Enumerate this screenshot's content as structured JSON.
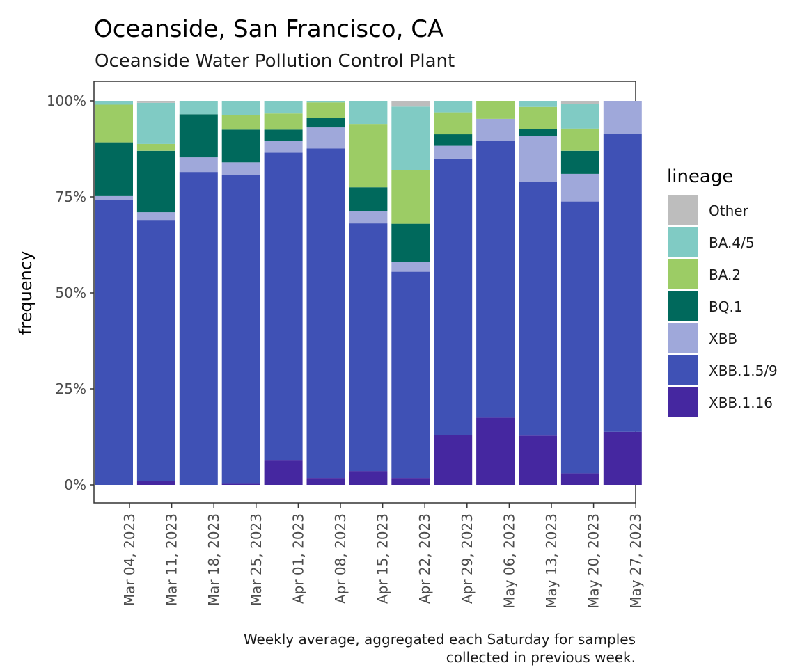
{
  "chart_data": {
    "type": "bar",
    "stacked": true,
    "title": "Oceanside, San Francisco, CA",
    "subtitle": "Oceanside Water Pollution Control Plant",
    "xlabel": "",
    "ylabel": "frequency",
    "ylim": [
      0,
      1
    ],
    "yticks": [
      "0%",
      "25%",
      "50%",
      "75%",
      "100%"
    ],
    "xticks": [
      "Mar 04, 2023",
      "Mar 11, 2023",
      "Mar 18, 2023",
      "Mar 25, 2023",
      "Apr 01, 2023",
      "Apr 08, 2023",
      "Apr 15, 2023",
      "Apr 22, 2023",
      "Apr 29, 2023",
      "May 06, 2023",
      "May 13, 2023",
      "May 20, 2023",
      "May 27, 2023"
    ],
    "caption_lines": [
      "Weekly average, aggregated each Saturday for samples",
      "collected in previous week."
    ],
    "legend_title": "lineage",
    "legend_position": "right",
    "grid": false,
    "bars": 13,
    "series": [
      {
        "name": "XBB.1.16",
        "color": "#4527a0",
        "values": [
          0.0,
          0.01,
          0.0,
          0.003,
          0.065,
          0.018,
          0.036,
          0.018,
          0.13,
          0.175,
          0.128,
          0.03,
          0.138
        ]
      },
      {
        "name": "XBB.1.5/9",
        "color": "#3f51b5",
        "values": [
          0.742,
          0.68,
          0.815,
          0.805,
          0.8,
          0.858,
          0.645,
          0.537,
          0.72,
          0.72,
          0.66,
          0.708,
          0.775
        ]
      },
      {
        "name": "XBB",
        "color": "#9fa8da",
        "values": [
          0.01,
          0.02,
          0.038,
          0.032,
          0.03,
          0.055,
          0.032,
          0.025,
          0.033,
          0.058,
          0.12,
          0.072,
          0.087
        ]
      },
      {
        "name": "BQ.1",
        "color": "#00695c",
        "values": [
          0.14,
          0.16,
          0.112,
          0.085,
          0.03,
          0.025,
          0.062,
          0.1,
          0.03,
          0.0,
          0.018,
          0.06,
          0.0
        ]
      },
      {
        "name": "BA.2",
        "color": "#9ccc65",
        "values": [
          0.098,
          0.018,
          0.0,
          0.038,
          0.042,
          0.04,
          0.165,
          0.14,
          0.057,
          0.047,
          0.058,
          0.058,
          0.0
        ]
      },
      {
        "name": "BA.4/5",
        "color": "#80cbc4",
        "values": [
          0.01,
          0.107,
          0.035,
          0.037,
          0.033,
          0.004,
          0.06,
          0.165,
          0.03,
          0.0,
          0.016,
          0.063,
          0.0
        ]
      },
      {
        "name": "Other",
        "color": "#bdbdbd",
        "values": [
          0.0,
          0.005,
          0.0,
          0.0,
          0.0,
          0.0,
          0.0,
          0.015,
          0.0,
          0.0,
          0.0,
          0.009,
          0.0
        ]
      }
    ],
    "legend_order": [
      "Other",
      "BA.4/5",
      "BA.2",
      "BQ.1",
      "XBB",
      "XBB.1.5/9",
      "XBB.1.16"
    ]
  }
}
